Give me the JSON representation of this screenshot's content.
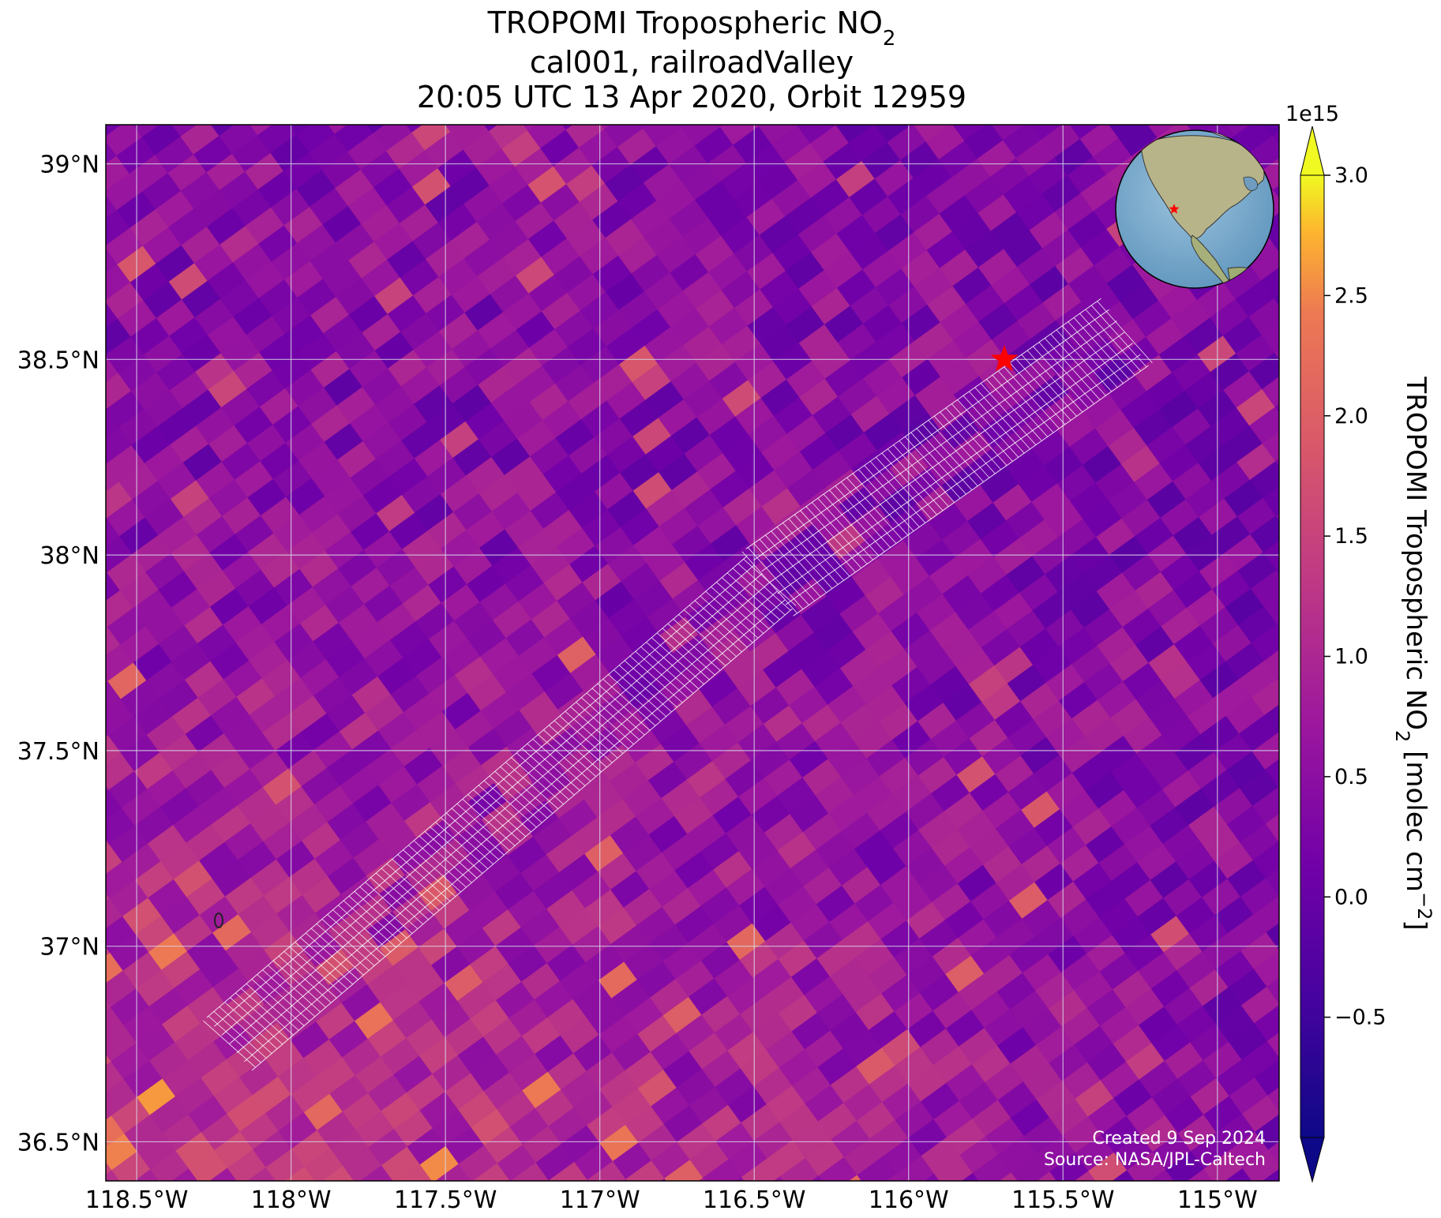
{
  "title": {
    "line1_main": "TROPOMI Tropospheric NO",
    "line1_sub": "2",
    "line2": "cal001, railroadValley",
    "line3": "20:05 UTC 13 Apr 2020, Orbit 12959"
  },
  "map": {
    "lon_range": [
      -118.6,
      -114.8
    ],
    "lat_range": [
      36.4,
      39.1
    ],
    "lon_ticks": [
      {
        "value": -118.5,
        "label": "118.5°W"
      },
      {
        "value": -118.0,
        "label": "118°W"
      },
      {
        "value": -117.5,
        "label": "117.5°W"
      },
      {
        "value": -117.0,
        "label": "117°W"
      },
      {
        "value": -116.5,
        "label": "116.5°W"
      },
      {
        "value": -116.0,
        "label": "116°W"
      },
      {
        "value": -115.5,
        "label": "115.5°W"
      },
      {
        "value": -115.0,
        "label": "115°W"
      }
    ],
    "lat_ticks": [
      {
        "value": 39.0,
        "label": "39°N"
      },
      {
        "value": 38.5,
        "label": "38.5°N"
      },
      {
        "value": 38.0,
        "label": "38°N"
      },
      {
        "value": 37.5,
        "label": "37.5°N"
      },
      {
        "value": 37.0,
        "label": "37°N"
      },
      {
        "value": 36.5,
        "label": "36.5°N"
      }
    ],
    "grid": true,
    "site_marker": {
      "lon": -115.69,
      "lat": 38.5,
      "shape": "star",
      "color": "#ff0000"
    },
    "target_swath": {
      "color": "#ffffff",
      "segments": [
        {
          "start": [
            -118.2,
            36.75
          ],
          "end": [
            -116.45,
            37.93
          ]
        },
        {
          "start": [
            -116.45,
            37.93
          ],
          "end": [
            -115.3,
            38.57
          ]
        }
      ]
    },
    "colormap": "plasma",
    "field_pattern": "gridded pixels, mostly 0 to 1 ×1e15, higher toward the southwest"
  },
  "colorbar": {
    "label_main": "TROPOMI Tropospheric NO",
    "label_sub": "2",
    "label_units_pre": " [molec cm",
    "label_units_sup": "−2",
    "label_units_post": "]",
    "multiplier": "1e15",
    "range": [
      -1.0,
      3.0
    ],
    "extend": "both",
    "ticks": [
      {
        "value": -0.5,
        "label": "−0.5"
      },
      {
        "value": 0.0,
        "label": "0.0"
      },
      {
        "value": 0.5,
        "label": "0.5"
      },
      {
        "value": 1.0,
        "label": "1.0"
      },
      {
        "value": 1.5,
        "label": "1.5"
      },
      {
        "value": 2.0,
        "label": "2.0"
      },
      {
        "value": 2.5,
        "label": "2.5"
      },
      {
        "value": 3.0,
        "label": "3.0"
      }
    ]
  },
  "inset_globe": {
    "marker_color": "#ff0000"
  },
  "credits": {
    "created": "Created 9 Sep 2024",
    "source": "Source: NASA/JPL-Caltech"
  }
}
